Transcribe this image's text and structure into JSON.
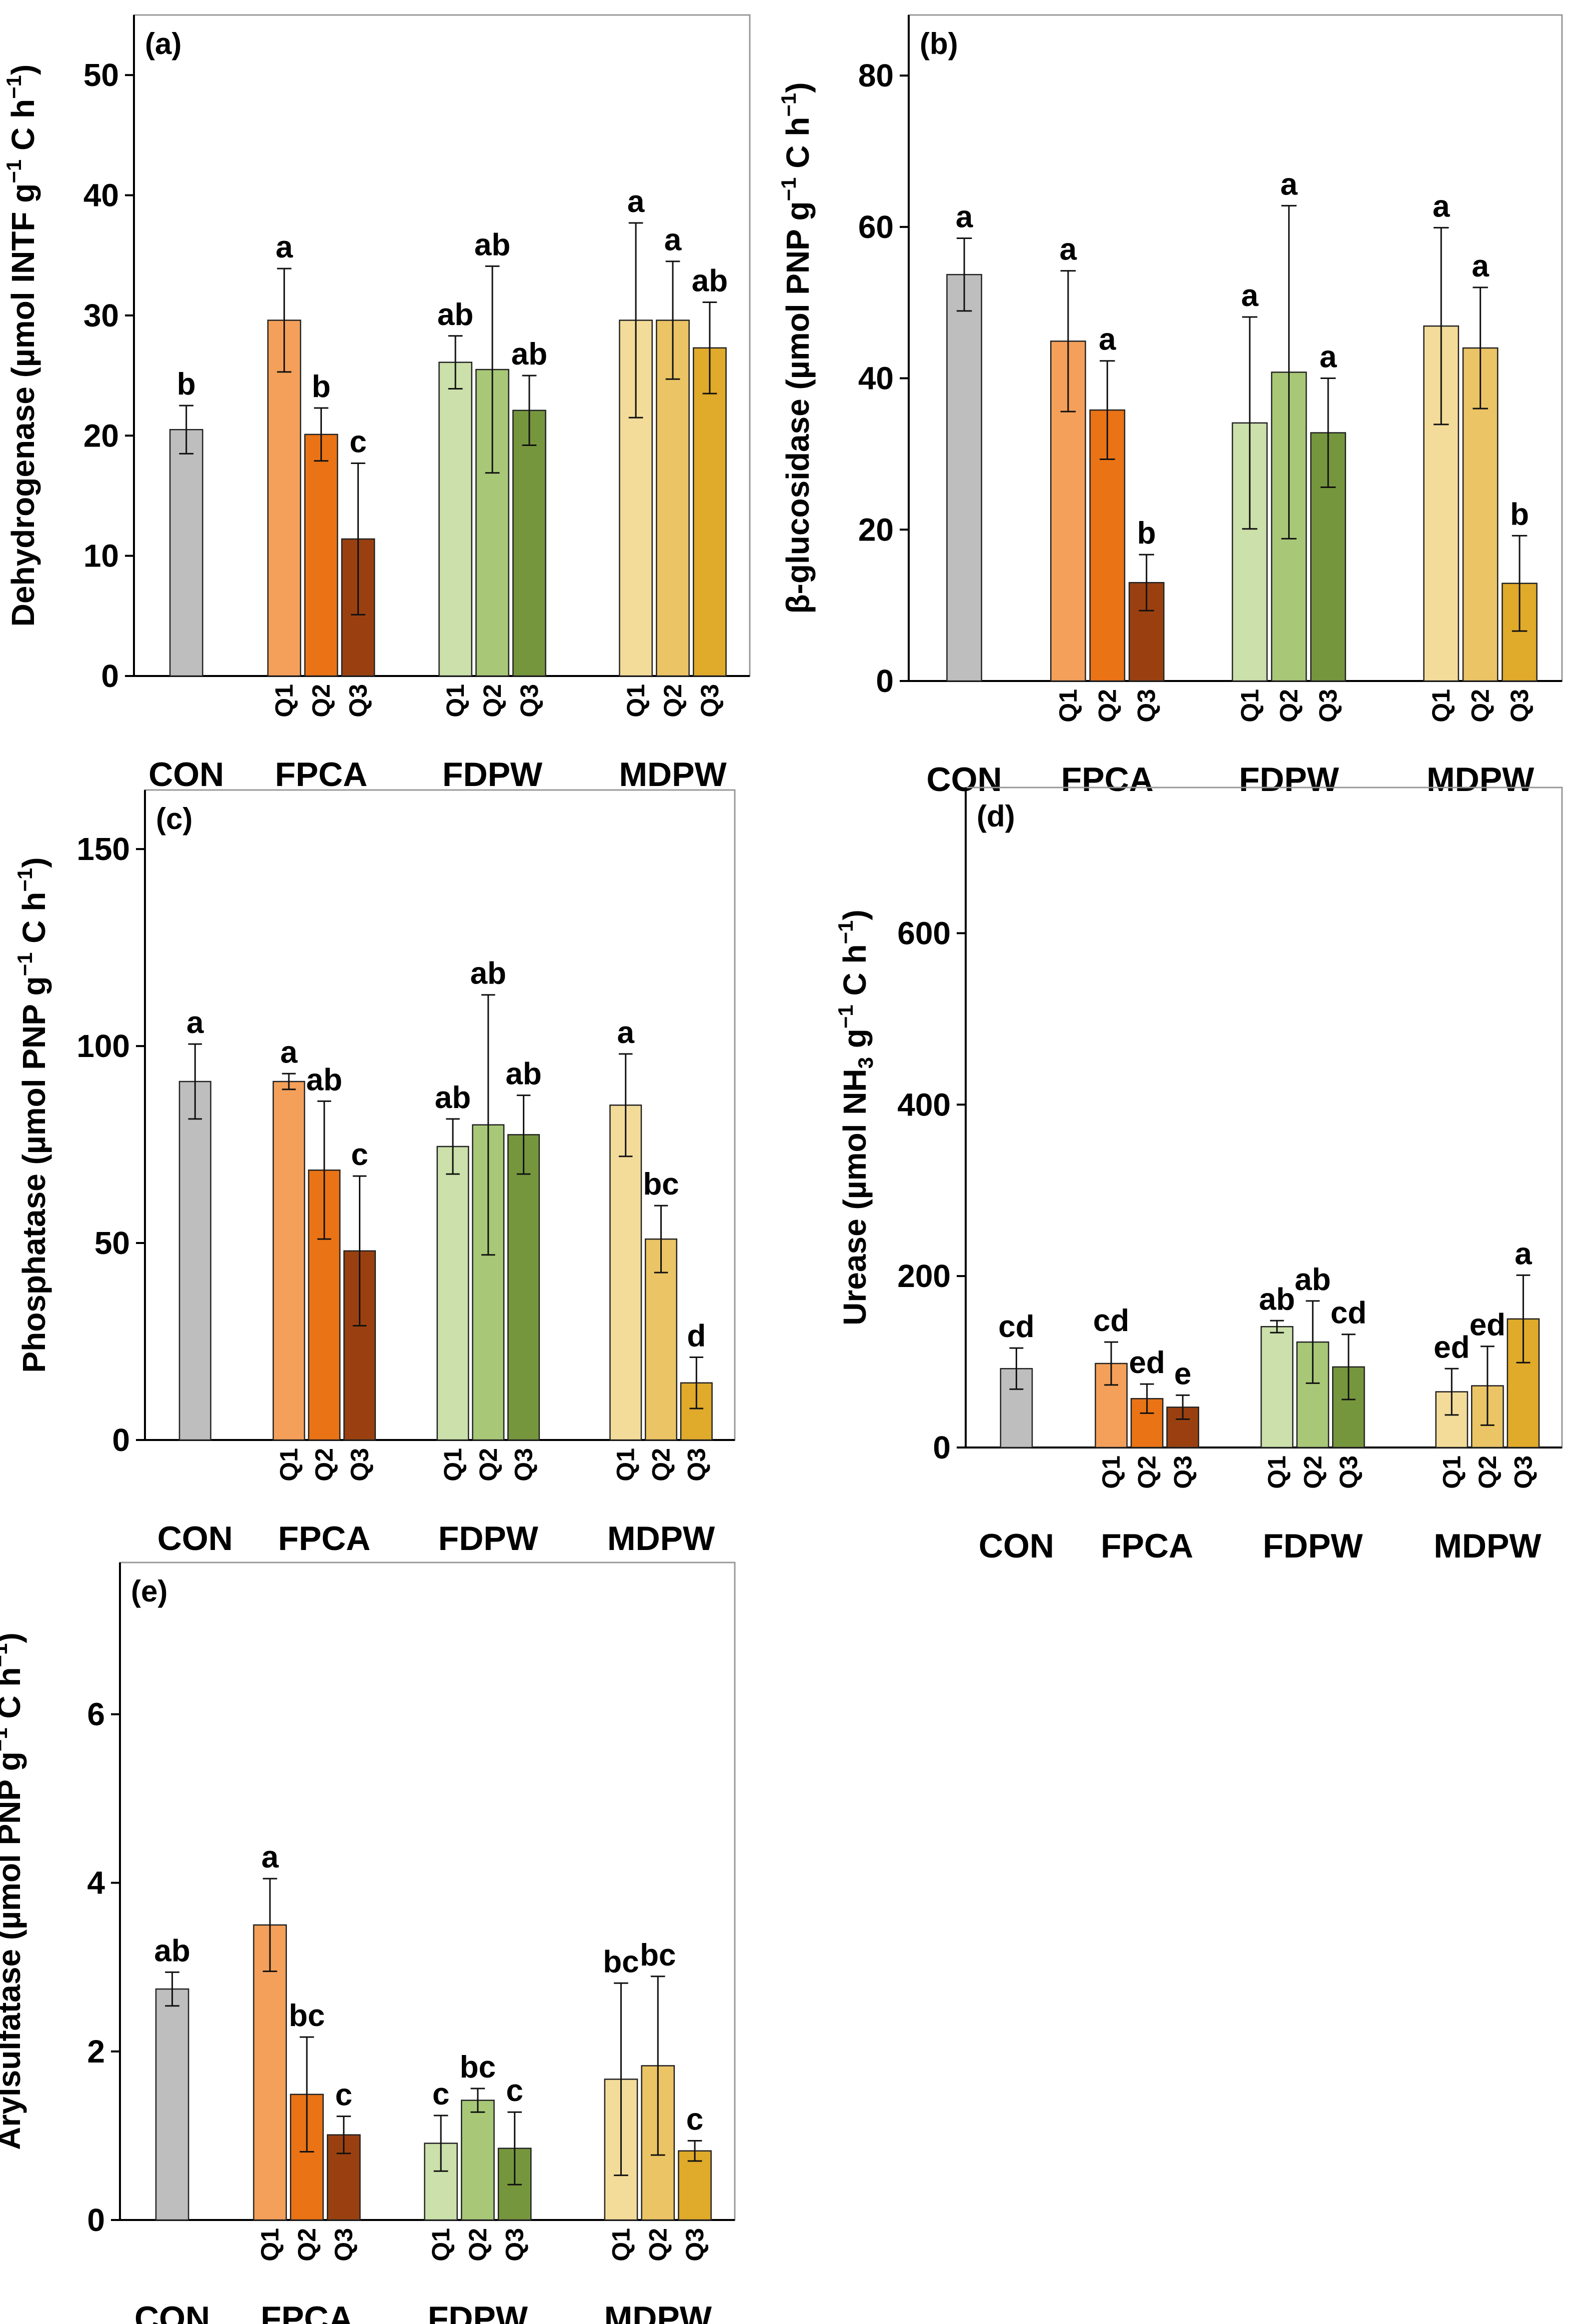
{
  "chart_data": [
    {
      "type": "bar",
      "panel": "(a)",
      "ylabel_main": "Dehydrogenase (µmol INTF g",
      "ylabel_sup1": "−1",
      "ylabel_mid": " C h",
      "ylabel_sup2": "−1",
      "ylabel_end": ")",
      "ylim": [
        0,
        55
      ],
      "yticks": [
        "0",
        "10",
        "20",
        "30",
        "40",
        "50"
      ],
      "ytick_values": [
        0,
        10,
        20,
        30,
        40,
        50
      ],
      "groups": [
        "CON",
        "FPCA",
        "FDPW",
        "MDPW"
      ],
      "sublabels": [
        "Q1",
        "Q2",
        "Q3"
      ],
      "bars": [
        {
          "group": "CON",
          "sub": "",
          "value": 20.5,
          "err": 2.0,
          "letter": "b"
        },
        {
          "group": "FPCA",
          "sub": "Q1",
          "value": 29.6,
          "err": 4.3,
          "letter": "a"
        },
        {
          "group": "FPCA",
          "sub": "Q2",
          "value": 20.1,
          "err": 2.2,
          "letter": "b"
        },
        {
          "group": "FPCA",
          "sub": "Q3",
          "value": 11.4,
          "err": 6.3,
          "letter": "c"
        },
        {
          "group": "FDPW",
          "sub": "Q1",
          "value": 26.1,
          "err": 2.2,
          "letter": "ab"
        },
        {
          "group": "FDPW",
          "sub": "Q2",
          "value": 25.5,
          "err": 8.6,
          "letter": "ab"
        },
        {
          "group": "FDPW",
          "sub": "Q3",
          "value": 22.1,
          "err": 2.9,
          "letter": "ab"
        },
        {
          "group": "MDPW",
          "sub": "Q1",
          "value": 29.6,
          "err": 8.1,
          "letter": "a"
        },
        {
          "group": "MDPW",
          "sub": "Q2",
          "value": 29.6,
          "err": 4.9,
          "letter": "a"
        },
        {
          "group": "MDPW",
          "sub": "Q3",
          "value": 27.3,
          "err": 3.8,
          "letter": "ab"
        }
      ]
    },
    {
      "type": "bar",
      "panel": "(b)",
      "ylabel_main": "β-glucosidase (µmol PNP g",
      "ylabel_sup1": "−1",
      "ylabel_mid": " C h",
      "ylabel_sup2": "−1",
      "ylabel_end": ")",
      "ylim": [
        0,
        88
      ],
      "yticks": [
        "0",
        "20",
        "40",
        "60",
        "80"
      ],
      "ytick_values": [
        0,
        20,
        40,
        60,
        80
      ],
      "groups": [
        "CON",
        "FPCA",
        "FDPW",
        "MDPW"
      ],
      "sublabels": [
        "Q1",
        "Q2",
        "Q3"
      ],
      "bars": [
        {
          "group": "CON",
          "sub": "",
          "value": 53.7,
          "err": 4.8,
          "letter": "a"
        },
        {
          "group": "FPCA",
          "sub": "Q1",
          "value": 44.9,
          "err": 9.3,
          "letter": "a"
        },
        {
          "group": "FPCA",
          "sub": "Q2",
          "value": 35.8,
          "err": 6.5,
          "letter": "a"
        },
        {
          "group": "FPCA",
          "sub": "Q3",
          "value": 13.0,
          "err": 3.7,
          "letter": "b"
        },
        {
          "group": "FDPW",
          "sub": "Q1",
          "value": 34.1,
          "err": 14.0,
          "letter": "a"
        },
        {
          "group": "FDPW",
          "sub": "Q2",
          "value": 40.8,
          "err": 22.0,
          "letter": "a"
        },
        {
          "group": "FDPW",
          "sub": "Q3",
          "value": 32.8,
          "err": 7.2,
          "letter": "a"
        },
        {
          "group": "MDPW",
          "sub": "Q1",
          "value": 46.9,
          "err": 13.0,
          "letter": "a"
        },
        {
          "group": "MDPW",
          "sub": "Q2",
          "value": 44.0,
          "err": 8.0,
          "letter": "a"
        },
        {
          "group": "MDPW",
          "sub": "Q3",
          "value": 12.9,
          "err": 6.3,
          "letter": "b"
        }
      ]
    },
    {
      "type": "bar",
      "panel": "(c)",
      "ylabel_main": "Phosphatase (µmol PNP g",
      "ylabel_sup1": "−1",
      "ylabel_mid": " C h",
      "ylabel_sup2": "−1",
      "ylabel_end": ")",
      "ylim": [
        0,
        165
      ],
      "yticks": [
        "0",
        "50",
        "100",
        "150"
      ],
      "ytick_values": [
        0,
        50,
        100,
        150
      ],
      "groups": [
        "CON",
        "FPCA",
        "FDPW",
        "MDPW"
      ],
      "sublabels": [
        "Q1",
        "Q2",
        "Q3"
      ],
      "bars": [
        {
          "group": "CON",
          "sub": "",
          "value": 91.0,
          "err": 9.5,
          "letter": "a"
        },
        {
          "group": "FPCA",
          "sub": "Q1",
          "value": 91.0,
          "err": 2.0,
          "letter": "a"
        },
        {
          "group": "FPCA",
          "sub": "Q2",
          "value": 68.5,
          "err": 17.5,
          "letter": "ab"
        },
        {
          "group": "FPCA",
          "sub": "Q3",
          "value": 48.0,
          "err": 19.0,
          "letter": "c"
        },
        {
          "group": "FDPW",
          "sub": "Q1",
          "value": 74.5,
          "err": 7.0,
          "letter": "ab"
        },
        {
          "group": "FDPW",
          "sub": "Q2",
          "value": 80.0,
          "err": 33.0,
          "letter": "ab"
        },
        {
          "group": "FDPW",
          "sub": "Q3",
          "value": 77.5,
          "err": 10.0,
          "letter": "ab"
        },
        {
          "group": "MDPW",
          "sub": "Q1",
          "value": 85.0,
          "err": 13.0,
          "letter": "a"
        },
        {
          "group": "MDPW",
          "sub": "Q2",
          "value": 51.0,
          "err": 8.5,
          "letter": "bc"
        },
        {
          "group": "MDPW",
          "sub": "Q3",
          "value": 14.5,
          "err": 6.5,
          "letter": "d"
        }
      ]
    },
    {
      "type": "bar",
      "panel": "(d)",
      "ylabel_main": "Urease (µmol NH",
      "ylabel_sub": "3",
      "ylabel_post": " g",
      "ylabel_sup1": "−1",
      "ylabel_mid": " C h",
      "ylabel_sup2": "−1",
      "ylabel_end": ")",
      "ylim": [
        0,
        770
      ],
      "yticks": [
        "0",
        "200",
        "400",
        "600"
      ],
      "ytick_values": [
        0,
        200,
        400,
        600
      ],
      "groups": [
        "CON",
        "FPCA",
        "FDPW",
        "MDPW"
      ],
      "sublabels": [
        "Q1",
        "Q2",
        "Q3"
      ],
      "bars": [
        {
          "group": "CON",
          "sub": "",
          "value": 92,
          "err": 24,
          "letter": "cd"
        },
        {
          "group": "FPCA",
          "sub": "Q1",
          "value": 98,
          "err": 25,
          "letter": "cd"
        },
        {
          "group": "FPCA",
          "sub": "Q2",
          "value": 57,
          "err": 17,
          "letter": "ed"
        },
        {
          "group": "FPCA",
          "sub": "Q3",
          "value": 47,
          "err": 14,
          "letter": "e"
        },
        {
          "group": "FDPW",
          "sub": "Q1",
          "value": 141,
          "err": 7,
          "letter": "ab"
        },
        {
          "group": "FDPW",
          "sub": "Q2",
          "value": 123,
          "err": 48,
          "letter": "ab"
        },
        {
          "group": "FDPW",
          "sub": "Q3",
          "value": 94,
          "err": 38,
          "letter": "cd"
        },
        {
          "group": "MDPW",
          "sub": "Q1",
          "value": 65,
          "err": 27,
          "letter": "ed"
        },
        {
          "group": "MDPW",
          "sub": "Q2",
          "value": 72,
          "err": 46,
          "letter": "ed"
        },
        {
          "group": "MDPW",
          "sub": "Q3",
          "value": 150,
          "err": 51,
          "letter": "a"
        }
      ]
    },
    {
      "type": "bar",
      "panel": "(e)",
      "ylabel_main": "Arylsulfatase (µmol PNP g",
      "ylabel_sup1": "−1",
      "ylabel_mid": " C h",
      "ylabel_sup2": "−1",
      "ylabel_end": ")",
      "ylim": [
        0,
        7.8
      ],
      "yticks": [
        "0",
        "2",
        "4",
        "6"
      ],
      "ytick_values": [
        0,
        2,
        4,
        6
      ],
      "groups": [
        "CON",
        "FPCA",
        "FDPW",
        "MDPW"
      ],
      "sublabels": [
        "Q1",
        "Q2",
        "Q3"
      ],
      "bars": [
        {
          "group": "CON",
          "sub": "",
          "value": 2.74,
          "err": 0.2,
          "letter": "ab"
        },
        {
          "group": "FPCA",
          "sub": "Q1",
          "value": 3.5,
          "err": 0.55,
          "letter": "a"
        },
        {
          "group": "FPCA",
          "sub": "Q2",
          "value": 1.49,
          "err": 0.68,
          "letter": "bc"
        },
        {
          "group": "FPCA",
          "sub": "Q3",
          "value": 1.01,
          "err": 0.22,
          "letter": "c"
        },
        {
          "group": "FDPW",
          "sub": "Q1",
          "value": 0.91,
          "err": 0.33,
          "letter": "c"
        },
        {
          "group": "FDPW",
          "sub": "Q2",
          "value": 1.42,
          "err": 0.14,
          "letter": "bc"
        },
        {
          "group": "FDPW",
          "sub": "Q3",
          "value": 0.85,
          "err": 0.43,
          "letter": "c"
        },
        {
          "group": "MDPW",
          "sub": "Q1",
          "value": 1.67,
          "err": 1.14,
          "letter": "bc"
        },
        {
          "group": "MDPW",
          "sub": "Q2",
          "value": 1.83,
          "err": 1.06,
          "letter": "bc"
        },
        {
          "group": "MDPW",
          "sub": "Q3",
          "value": 0.82,
          "err": 0.12,
          "letter": "c"
        }
      ]
    }
  ],
  "colors": {
    "CON": "#bebebe",
    "FPCA_Q1": "#f4a05a",
    "FPCA_Q2": "#ea7315",
    "FPCA_Q3": "#9a4010",
    "FDPW_Q1": "#cbe0aa",
    "FDPW_Q2": "#a8c878",
    "FDPW_Q3": "#76963e",
    "MDPW_Q1": "#f3dc9a",
    "MDPW_Q2": "#ebc465",
    "MDPW_Q3": "#e0aa2a"
  }
}
